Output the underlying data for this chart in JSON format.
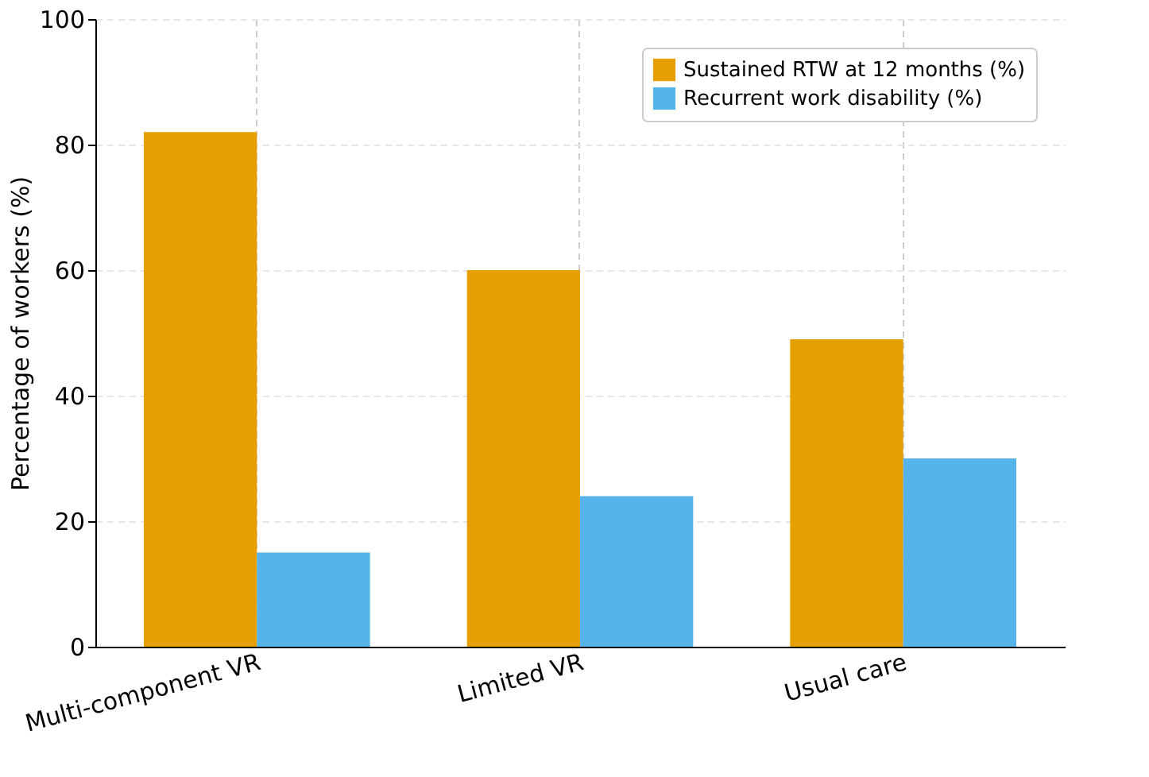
{
  "chart_data": {
    "type": "bar",
    "ylabel": "Percentage of workers (%)",
    "categories": [
      "Multi-component VR",
      "Limited VR",
      "Usual care"
    ],
    "series": [
      {
        "name": "Sustained RTW at 12 months (%)",
        "color": "#e69f00",
        "values": [
          82,
          60,
          49
        ]
      },
      {
        "name": "Recurrent work disability (%)",
        "color": "#56b4e9",
        "values": [
          15,
          24,
          30
        ]
      }
    ],
    "ylim": [
      0,
      100
    ],
    "yticks": [
      0,
      20,
      40,
      60,
      80,
      100
    ],
    "grid": true,
    "legend": "top right"
  }
}
